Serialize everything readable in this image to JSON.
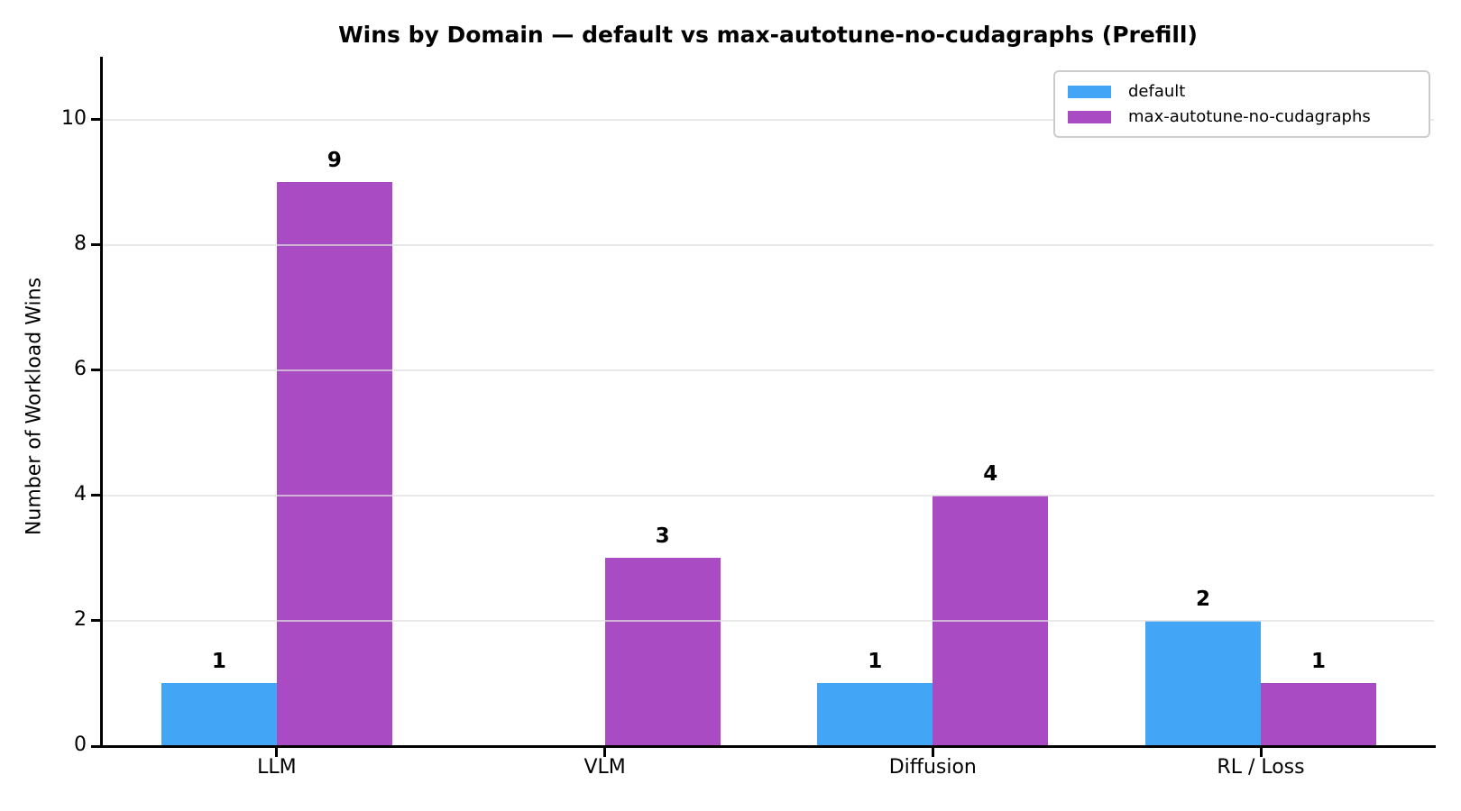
{
  "chart_data": {
    "type": "bar",
    "title": "Wins by Domain — default vs max-autotune-no-cudagraphs (Prefill)",
    "ylabel": "Number of Workload Wins",
    "xlabel": "",
    "categories": [
      "LLM",
      "VLM",
      "Diffusion",
      "RL / Loss"
    ],
    "series": [
      {
        "name": "default",
        "color": "#42A5F5",
        "values": [
          1,
          0,
          1,
          2
        ]
      },
      {
        "name": "max-autotune-no-cudagraphs",
        "color": "#A94BC3",
        "values": [
          9,
          3,
          4,
          1
        ]
      }
    ],
    "ylim": [
      0,
      11
    ],
    "yticks": [
      0,
      2,
      4,
      6,
      8,
      10
    ],
    "grid": "horizontal-light-gray",
    "gridline_color": "#e6e6e6",
    "axis_color": "#000000",
    "legend_position": "upper-right",
    "bar_value_labels_shown": true,
    "zero_value_bars_have_no_label": true
  }
}
